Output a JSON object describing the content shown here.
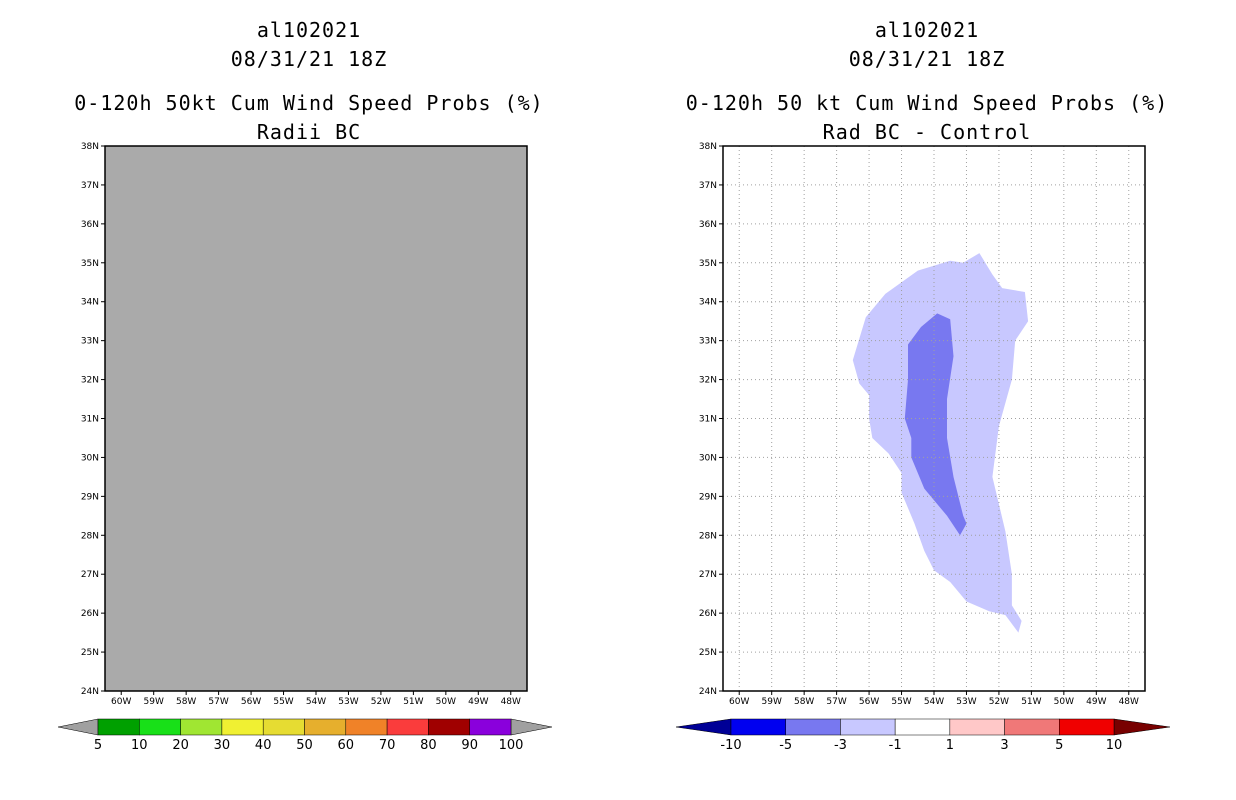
{
  "panels": [
    {
      "storm_id": "al102021",
      "datetime": "08/31/21 18Z",
      "title": "0-120h 50kt Cum Wind Speed Probs (%)",
      "subtitle": "Radii BC"
    },
    {
      "storm_id": "al102021",
      "datetime": "08/31/21 18Z",
      "title": "0-120h 50 kt Cum Wind Speed Probs (%)",
      "subtitle": "Rad BC - Control"
    }
  ],
  "chart_data": [
    {
      "type": "heatmap",
      "title": "0-120h 50kt Cum Wind Speed Probs (%)",
      "subtitle": "Radii BC",
      "x_range": [
        -60.5,
        -47.5
      ],
      "y_range": [
        24,
        38
      ],
      "x_ticks": [
        "60W",
        "59W",
        "58W",
        "57W",
        "56W",
        "55W",
        "54W",
        "53W",
        "52W",
        "51W",
        "50W",
        "49W",
        "48W"
      ],
      "y_ticks": [
        "24N",
        "25N",
        "26N",
        "27N",
        "28N",
        "29N",
        "30N",
        "31N",
        "32N",
        "33N",
        "34N",
        "35N",
        "36N",
        "37N",
        "38N"
      ],
      "background": "#aaaaaa",
      "grid": false,
      "colorbar": {
        "labels": [
          "5",
          "10",
          "20",
          "30",
          "40",
          "50",
          "60",
          "70",
          "80",
          "90",
          "100"
        ],
        "colors": [
          "#00a000",
          "#18e018",
          "#a0e632",
          "#f0f032",
          "#e6dc32",
          "#e6af2d",
          "#f08228",
          "#fa3c3c",
          "#a00000",
          "#8a00dc"
        ],
        "end_colors": [
          "#a0a0a0",
          "#a0a0a0"
        ]
      }
    },
    {
      "type": "heatmap",
      "title": "0-120h 50 kt Cum Wind Speed Probs (%)",
      "subtitle": "Rad BC - Control",
      "x_range": [
        -60.5,
        -47.5
      ],
      "y_range": [
        24,
        38
      ],
      "x_ticks": [
        "60W",
        "59W",
        "58W",
        "57W",
        "56W",
        "55W",
        "54W",
        "53W",
        "52W",
        "51W",
        "50W",
        "49W",
        "48W"
      ],
      "y_ticks": [
        "24N",
        "25N",
        "26N",
        "27N",
        "28N",
        "29N",
        "30N",
        "31N",
        "32N",
        "33N",
        "34N",
        "35N",
        "36N",
        "37N",
        "38N"
      ],
      "grid": true,
      "contours": [
        {
          "level": "-3 to -1",
          "color": "#c8c8ff",
          "points": [
            [
              -56.5,
              32.5
            ],
            [
              -56.1,
              33.6
            ],
            [
              -55.5,
              34.2
            ],
            [
              -54.5,
              34.8
            ],
            [
              -53.5,
              35.05
            ],
            [
              -53.1,
              35.0
            ],
            [
              -52.6,
              35.25
            ],
            [
              -52.2,
              34.7
            ],
            [
              -51.9,
              34.35
            ],
            [
              -51.2,
              34.25
            ],
            [
              -51.1,
              33.5
            ],
            [
              -51.5,
              33.0
            ],
            [
              -51.6,
              32.0
            ],
            [
              -52.0,
              30.8
            ],
            [
              -52.2,
              29.5
            ],
            [
              -51.8,
              28.1
            ],
            [
              -51.6,
              27.0
            ],
            [
              -51.6,
              26.2
            ],
            [
              -51.3,
              25.8
            ],
            [
              -51.4,
              25.5
            ],
            [
              -51.8,
              25.95
            ],
            [
              -52.3,
              26.05
            ],
            [
              -53.0,
              26.3
            ],
            [
              -53.5,
              26.8
            ],
            [
              -54.0,
              27.1
            ],
            [
              -54.3,
              27.6
            ],
            [
              -54.6,
              28.3
            ],
            [
              -55.0,
              29.1
            ],
            [
              -55.0,
              29.6
            ],
            [
              -55.4,
              30.1
            ],
            [
              -55.9,
              30.5
            ],
            [
              -56.0,
              31.0
            ],
            [
              -56.0,
              31.6
            ],
            [
              -56.3,
              31.9
            ]
          ]
        },
        {
          "level": "-5 to -3",
          "color": "#7878f0",
          "points": [
            [
              -54.8,
              32.9
            ],
            [
              -54.4,
              33.35
            ],
            [
              -53.9,
              33.7
            ],
            [
              -53.5,
              33.55
            ],
            [
              -53.4,
              32.6
            ],
            [
              -53.6,
              31.5
            ],
            [
              -53.6,
              30.5
            ],
            [
              -53.4,
              29.5
            ],
            [
              -53.1,
              28.5
            ],
            [
              -53.0,
              28.3
            ],
            [
              -53.2,
              28.0
            ],
            [
              -53.6,
              28.5
            ],
            [
              -54.3,
              29.2
            ],
            [
              -54.7,
              30.0
            ],
            [
              -54.7,
              30.5
            ],
            [
              -54.9,
              31.0
            ],
            [
              -54.8,
              32.0
            ]
          ]
        }
      ],
      "colorbar": {
        "labels": [
          "-10",
          "-5",
          "-3",
          "-1",
          "1",
          "3",
          "5",
          "10"
        ],
        "colors": [
          "#0000f0",
          "#7878f0",
          "#c8c8ff",
          "#ffffff",
          "#ffc8c8",
          "#f07878",
          "#f00000"
        ],
        "end_colors": [
          "#000096",
          "#780000"
        ]
      }
    }
  ]
}
